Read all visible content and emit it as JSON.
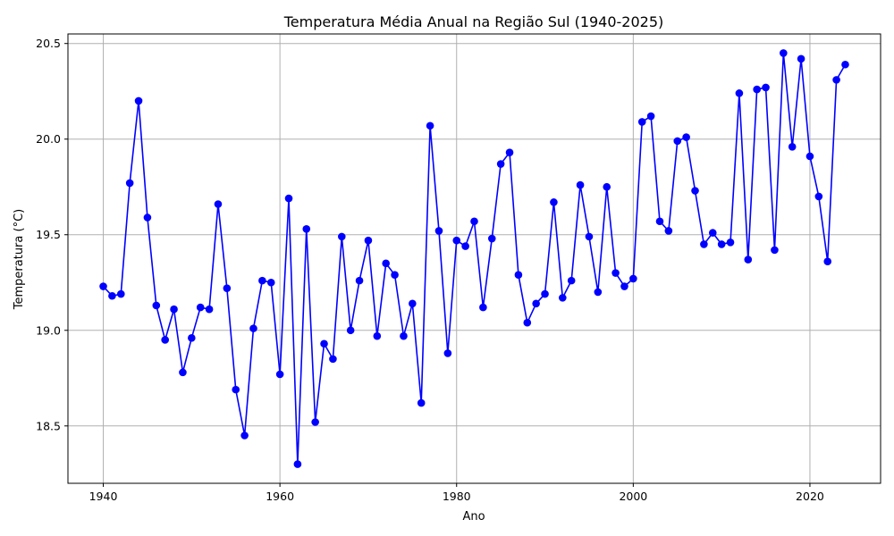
{
  "chart_data": {
    "type": "line",
    "title": "Temperatura Média Anual na Região Sul (1940-2025)",
    "xlabel": "Ano",
    "ylabel": "Temperatura (°C)",
    "xlim": [
      1936,
      2028
    ],
    "ylim": [
      18.2,
      20.55
    ],
    "xticks": [
      1940,
      1960,
      1980,
      2000,
      2020
    ],
    "yticks": [
      18.5,
      19.0,
      19.5,
      20.0,
      20.5
    ],
    "ytick_labels": [
      "18.5",
      "19.0",
      "19.5",
      "20.0",
      "20.5"
    ],
    "grid": true,
    "series": [
      {
        "color": "#0000ff",
        "marker": "circle",
        "x": [
          1940,
          1941,
          1942,
          1943,
          1944,
          1945,
          1946,
          1947,
          1948,
          1949,
          1950,
          1951,
          1952,
          1953,
          1954,
          1955,
          1956,
          1957,
          1958,
          1959,
          1960,
          1961,
          1962,
          1963,
          1964,
          1965,
          1966,
          1967,
          1968,
          1969,
          1970,
          1971,
          1972,
          1973,
          1974,
          1975,
          1976,
          1977,
          1978,
          1979,
          1980,
          1981,
          1982,
          1983,
          1984,
          1985,
          1986,
          1987,
          1988,
          1989,
          1990,
          1991,
          1992,
          1993,
          1994,
          1995,
          1996,
          1997,
          1998,
          1999,
          2000,
          2001,
          2002,
          2003,
          2004,
          2005,
          2006,
          2007,
          2008,
          2009,
          2010,
          2011,
          2012,
          2013,
          2014,
          2015,
          2016,
          2017,
          2018,
          2019,
          2020,
          2021,
          2022,
          2023,
          2024
        ],
        "y": [
          19.23,
          19.18,
          19.19,
          19.77,
          20.2,
          19.59,
          19.13,
          18.95,
          19.11,
          18.78,
          18.96,
          19.12,
          19.11,
          19.66,
          19.22,
          18.69,
          18.45,
          19.01,
          19.26,
          19.25,
          18.77,
          19.69,
          18.3,
          19.53,
          18.52,
          18.93,
          18.85,
          19.49,
          19.0,
          19.26,
          19.47,
          18.97,
          19.35,
          19.29,
          18.97,
          19.14,
          18.62,
          20.07,
          19.52,
          18.88,
          19.47,
          19.44,
          19.57,
          19.12,
          19.48,
          19.87,
          19.93,
          19.29,
          19.04,
          19.14,
          19.19,
          19.67,
          19.17,
          19.26,
          19.76,
          19.49,
          19.2,
          19.75,
          19.3,
          19.23,
          19.27,
          20.09,
          20.12,
          19.57,
          19.52,
          19.99,
          20.01,
          19.73,
          19.45,
          19.51,
          19.45,
          19.46,
          20.24,
          19.37,
          20.26,
          20.27,
          19.42,
          20.45,
          19.96,
          20.42,
          19.91,
          19.7,
          19.36,
          20.31,
          20.39
        ]
      }
    ]
  }
}
